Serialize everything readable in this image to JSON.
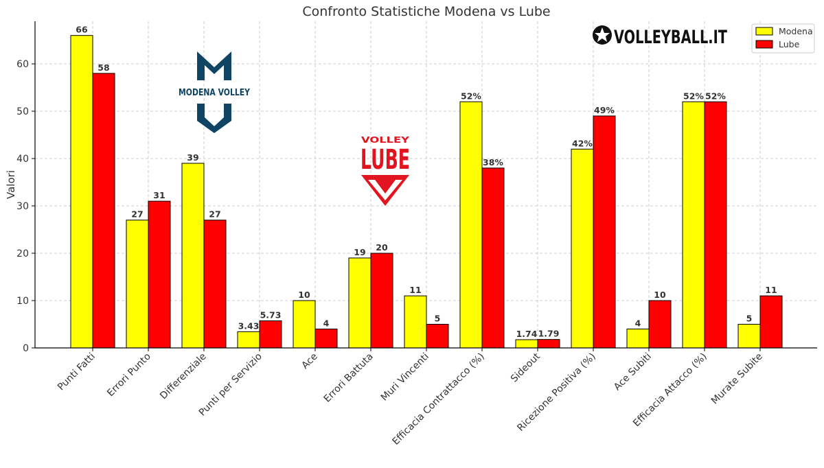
{
  "chart_data": {
    "type": "bar",
    "title": "Confronto Statistiche Modena vs Lube",
    "xlabel": "",
    "ylabel": "Valori",
    "ylim": [
      0,
      69
    ],
    "yticks": [
      0,
      10,
      20,
      30,
      40,
      50,
      60
    ],
    "grid": true,
    "legend_position": "top-right",
    "categories": [
      "Punti Fatti",
      "Errori Punto",
      "Differenziale",
      "Punti per Servizio",
      "Ace",
      "Errori Battuta",
      "Muri Vincenti",
      "Efficacia Contrattacco (%)",
      "Sideout",
      "Ricezione Positiva (%)",
      "Ace Subiti",
      "Efficacia Attacco (%)",
      "Murate Subite"
    ],
    "series": [
      {
        "name": "Modena",
        "color": "#ffff00",
        "values": [
          66,
          27,
          39,
          3.43,
          10,
          19,
          11,
          52,
          1.74,
          42,
          4,
          52,
          5
        ],
        "labels": [
          "66",
          "27",
          "39",
          "3.43",
          "10",
          "19",
          "11",
          "52%",
          "1.74",
          "42%",
          "4",
          "52%",
          "5"
        ]
      },
      {
        "name": "Lube",
        "color": "#ff0000",
        "values": [
          58,
          31,
          27,
          5.73,
          4,
          20,
          5,
          38,
          1.79,
          49,
          10,
          52,
          11
        ],
        "labels": [
          "58",
          "31",
          "27",
          "5.73",
          "4",
          "20",
          "5",
          "38%",
          "1.79",
          "49%",
          "10",
          "52%",
          "11"
        ]
      }
    ]
  },
  "logos": {
    "modena": {
      "line1": "MODENA VOLLEY",
      "color": "#0f4463"
    },
    "lube": {
      "line1": "VOLLEY",
      "line2": "LUBE",
      "color": "#e2141f"
    },
    "watermark": {
      "text": "VOLLEYBALL.IT"
    }
  }
}
